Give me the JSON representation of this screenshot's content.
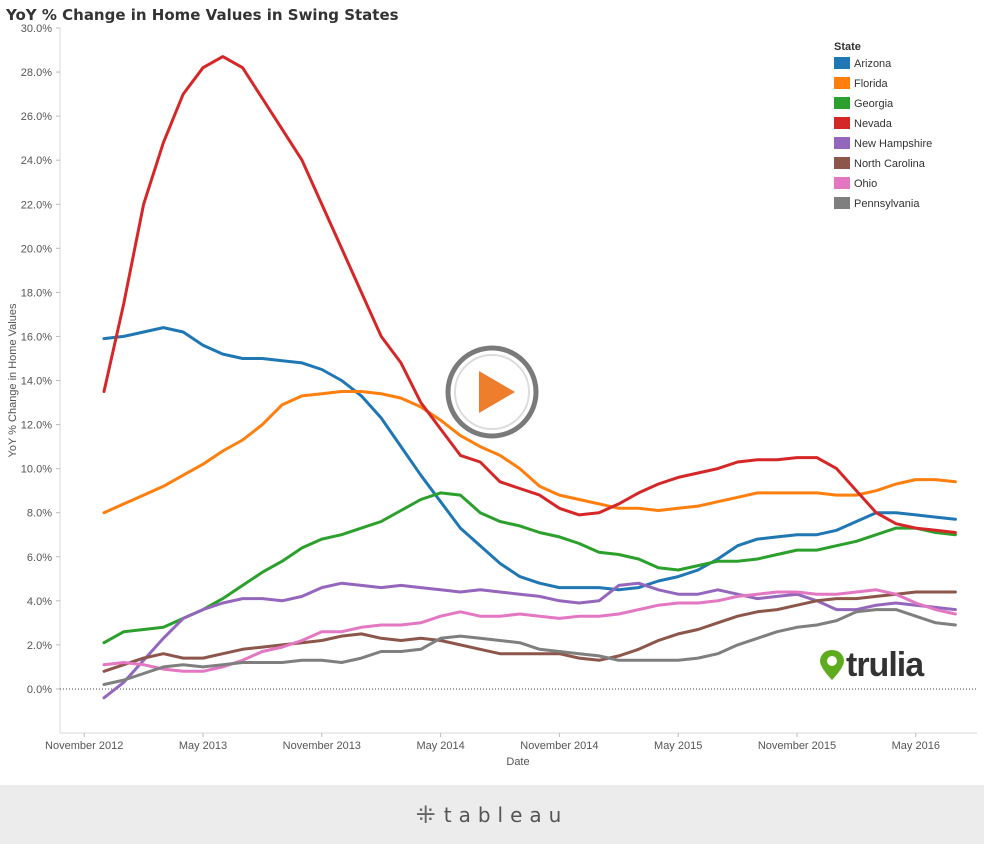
{
  "title": "YoY % Change in Home Values in Swing States",
  "chart_data": {
    "type": "line",
    "xlabel": "Date",
    "ylabel": "YoY % Change in Home Values",
    "x_ticks": [
      "November 2012",
      "May 2013",
      "November 2013",
      "May 2014",
      "November 2014",
      "May 2015",
      "November 2015",
      "May 2016"
    ],
    "y_ticks": [
      "0.0%",
      "2.0%",
      "4.0%",
      "6.0%",
      "8.0%",
      "10.0%",
      "12.0%",
      "14.0%",
      "16.0%",
      "18.0%",
      "20.0%",
      "22.0%",
      "24.0%",
      "26.0%",
      "28.0%",
      "30.0%"
    ],
    "ylim": [
      -2,
      30
    ],
    "grid": false,
    "zero_line": "dotted",
    "legend_title": "State",
    "legend_position": "top-right",
    "x": [
      "2012-12",
      "2013-01",
      "2013-02",
      "2013-03",
      "2013-04",
      "2013-05",
      "2013-06",
      "2013-07",
      "2013-08",
      "2013-09",
      "2013-10",
      "2013-11",
      "2013-12",
      "2014-01",
      "2014-02",
      "2014-03",
      "2014-04",
      "2014-05",
      "2014-06",
      "2014-07",
      "2014-08",
      "2014-09",
      "2014-10",
      "2014-11",
      "2014-12",
      "2015-01",
      "2015-02",
      "2015-03",
      "2015-04",
      "2015-05",
      "2015-06",
      "2015-07",
      "2015-08",
      "2015-09",
      "2015-10",
      "2015-11",
      "2015-12",
      "2016-01",
      "2016-02",
      "2016-03",
      "2016-04",
      "2016-05",
      "2016-06",
      "2016-07"
    ],
    "series": [
      {
        "name": "Arizona",
        "color": "#1f77b4",
        "values": [
          15.9,
          16.0,
          16.2,
          16.4,
          16.2,
          15.6,
          15.2,
          15.0,
          15.0,
          14.9,
          14.8,
          14.5,
          14.0,
          13.3,
          12.3,
          11.0,
          9.7,
          8.5,
          7.3,
          6.5,
          5.7,
          5.1,
          4.8,
          4.6,
          4.6,
          4.6,
          4.5,
          4.6,
          4.9,
          5.1,
          5.4,
          5.9,
          6.5,
          6.8,
          6.9,
          7.0,
          7.0,
          7.2,
          7.6,
          8.0,
          8.0,
          7.9,
          7.8,
          7.7
        ]
      },
      {
        "name": "Florida",
        "color": "#ff7f0e",
        "values": [
          8.0,
          8.4,
          8.8,
          9.2,
          9.7,
          10.2,
          10.8,
          11.3,
          12.0,
          12.9,
          13.3,
          13.4,
          13.5,
          13.5,
          13.4,
          13.2,
          12.8,
          12.2,
          11.5,
          11.0,
          10.6,
          10.0,
          9.2,
          8.8,
          8.6,
          8.4,
          8.2,
          8.2,
          8.1,
          8.2,
          8.3,
          8.5,
          8.7,
          8.9,
          8.9,
          8.9,
          8.9,
          8.8,
          8.8,
          9.0,
          9.3,
          9.5,
          9.5,
          9.4
        ]
      },
      {
        "name": "Georgia",
        "color": "#2ca02c",
        "values": [
          2.1,
          2.6,
          2.7,
          2.8,
          3.2,
          3.6,
          4.1,
          4.7,
          5.3,
          5.8,
          6.4,
          6.8,
          7.0,
          7.3,
          7.6,
          8.1,
          8.6,
          8.9,
          8.8,
          8.0,
          7.6,
          7.4,
          7.1,
          6.9,
          6.6,
          6.2,
          6.1,
          5.9,
          5.5,
          5.4,
          5.6,
          5.8,
          5.8,
          5.9,
          6.1,
          6.3,
          6.3,
          6.5,
          6.7,
          7.0,
          7.3,
          7.3,
          7.1,
          7.0
        ]
      },
      {
        "name": "Nevada",
        "color": "#d62728",
        "values": [
          13.5,
          17.5,
          22.0,
          24.8,
          27.0,
          28.2,
          28.7,
          28.2,
          26.8,
          25.4,
          24.0,
          22.0,
          20.0,
          18.0,
          16.0,
          14.8,
          13.0,
          11.8,
          10.6,
          10.3,
          9.4,
          9.1,
          8.8,
          8.2,
          7.9,
          8.0,
          8.4,
          8.9,
          9.3,
          9.6,
          9.8,
          10.0,
          10.3,
          10.4,
          10.4,
          10.5,
          10.5,
          10.0,
          9.0,
          8.0,
          7.5,
          7.3,
          7.2,
          7.1
        ]
      },
      {
        "name": "New Hampshire",
        "color": "#9467bd",
        "values": [
          -0.4,
          0.3,
          1.3,
          2.3,
          3.2,
          3.6,
          3.9,
          4.1,
          4.1,
          4.0,
          4.2,
          4.6,
          4.8,
          4.7,
          4.6,
          4.7,
          4.6,
          4.5,
          4.4,
          4.5,
          4.4,
          4.3,
          4.2,
          4.0,
          3.9,
          4.0,
          4.7,
          4.8,
          4.5,
          4.3,
          4.3,
          4.5,
          4.3,
          4.1,
          4.2,
          4.3,
          4.0,
          3.6,
          3.6,
          3.8,
          3.9,
          3.8,
          3.7,
          3.6
        ]
      },
      {
        "name": "North Carolina",
        "color": "#8c564b",
        "values": [
          0.8,
          1.1,
          1.4,
          1.6,
          1.4,
          1.4,
          1.6,
          1.8,
          1.9,
          2.0,
          2.1,
          2.2,
          2.4,
          2.5,
          2.3,
          2.2,
          2.3,
          2.2,
          2.0,
          1.8,
          1.6,
          1.6,
          1.6,
          1.6,
          1.4,
          1.3,
          1.5,
          1.8,
          2.2,
          2.5,
          2.7,
          3.0,
          3.3,
          3.5,
          3.6,
          3.8,
          4.0,
          4.1,
          4.1,
          4.2,
          4.3,
          4.4,
          4.4,
          4.4
        ]
      },
      {
        "name": "Ohio",
        "color": "#e377c2",
        "values": [
          1.1,
          1.2,
          1.1,
          0.9,
          0.8,
          0.8,
          1.0,
          1.3,
          1.7,
          1.9,
          2.2,
          2.6,
          2.6,
          2.8,
          2.9,
          2.9,
          3.0,
          3.3,
          3.5,
          3.3,
          3.3,
          3.4,
          3.3,
          3.2,
          3.3,
          3.3,
          3.4,
          3.6,
          3.8,
          3.9,
          3.9,
          4.0,
          4.2,
          4.3,
          4.4,
          4.4,
          4.3,
          4.3,
          4.4,
          4.5,
          4.3,
          3.9,
          3.6,
          3.4
        ]
      },
      {
        "name": "Pennsylvania",
        "color": "#7f7f7f",
        "values": [
          0.2,
          0.4,
          0.7,
          1.0,
          1.1,
          1.0,
          1.1,
          1.2,
          1.2,
          1.2,
          1.3,
          1.3,
          1.2,
          1.4,
          1.7,
          1.7,
          1.8,
          2.3,
          2.4,
          2.3,
          2.2,
          2.1,
          1.8,
          1.7,
          1.6,
          1.5,
          1.3,
          1.3,
          1.3,
          1.3,
          1.4,
          1.6,
          2.0,
          2.3,
          2.6,
          2.8,
          2.9,
          3.1,
          3.5,
          3.6,
          3.6,
          3.3,
          3.0,
          2.9
        ]
      }
    ]
  },
  "footer": {
    "brand": "tableau",
    "brand_icon": "tableau-cross-icon"
  },
  "overlay": {
    "play_icon": "play-icon",
    "play_color": "#ee7d2c",
    "watermark": "trulia",
    "watermark_icon": "map-pin-icon",
    "watermark_color": "#5eab1f"
  }
}
